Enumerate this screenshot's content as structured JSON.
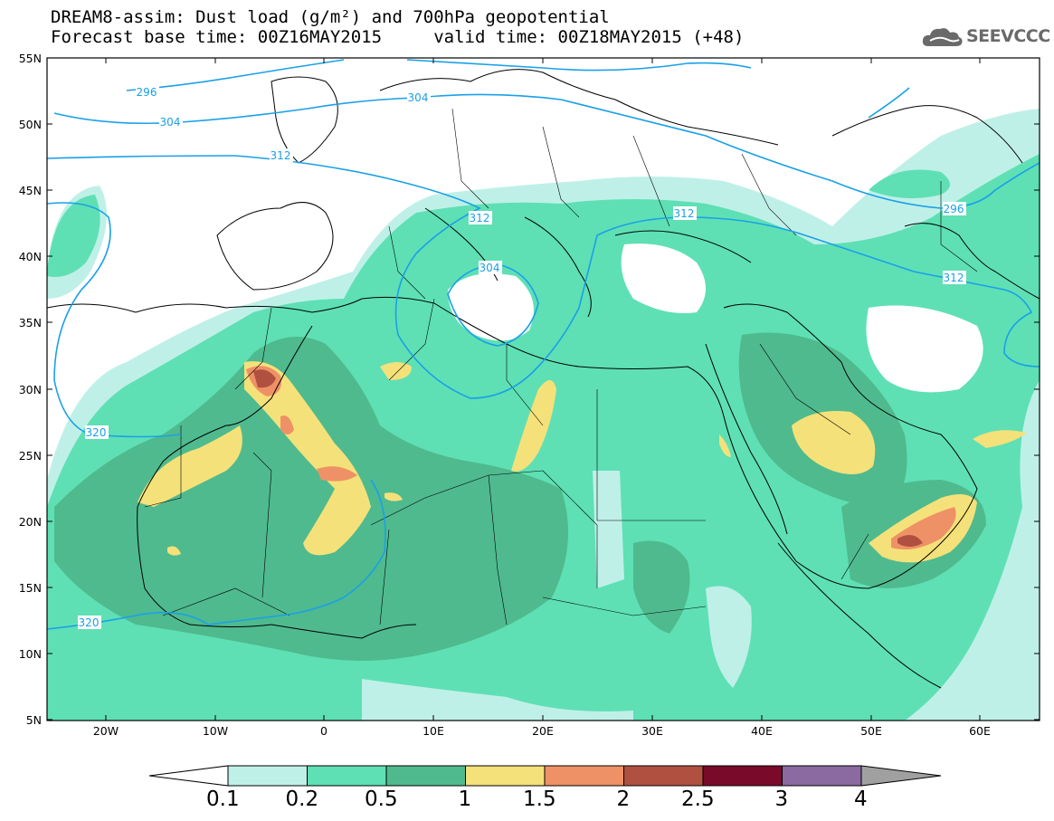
{
  "title": {
    "line1": "DREAM8-assim: Dust load (g/m²) and 700hPa geopotential",
    "line2": "Forecast base time: 00Z16MAY2015     valid time: 00Z18MAY2015 (+48)"
  },
  "logo": {
    "text": "SEEVCCC",
    "icon": "cloud-icon"
  },
  "map": {
    "lat_labels": [
      "55N",
      "50N",
      "45N",
      "40N",
      "35N",
      "30N",
      "25N",
      "20N",
      "15N",
      "10N",
      "5N"
    ],
    "lon_labels": [
      "20W",
      "10W",
      "0",
      "10E",
      "20E",
      "30E",
      "40E",
      "50E",
      "60E"
    ],
    "contour_labels": [
      "296",
      "304",
      "312",
      "304",
      "312",
      "312",
      "304",
      "296",
      "312",
      "320",
      "320"
    ]
  },
  "colorbar": {
    "labels": [
      "0.1",
      "0.2",
      "0.5",
      "1",
      "1.5",
      "2",
      "2.5",
      "3",
      "4"
    ],
    "colors": [
      "#ffffff",
      "#bff0e8",
      "#5ee0b4",
      "#4fba8e",
      "#f5e17a",
      "#ef9166",
      "#b05040",
      "#7a0a2a",
      "#8a6aa0",
      "#a0a0a0"
    ]
  }
}
